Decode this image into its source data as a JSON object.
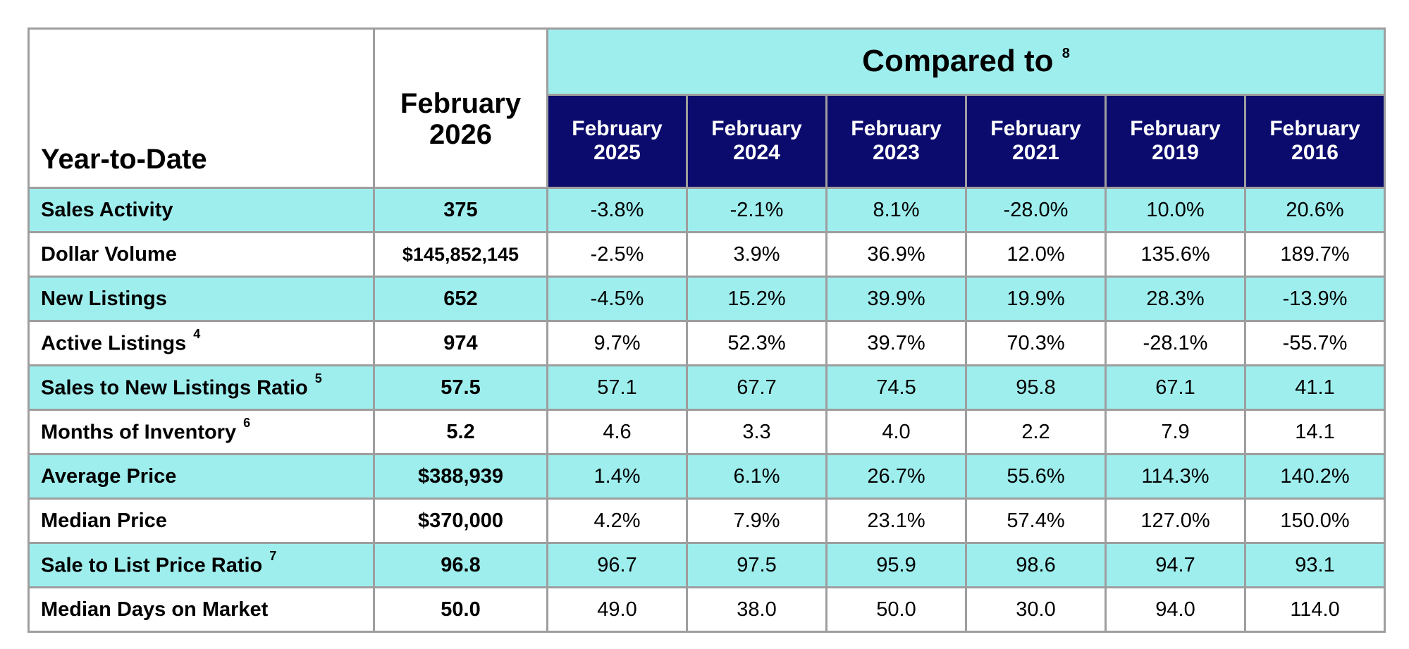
{
  "table": {
    "row_header": "Year-to-Date",
    "current_period": {
      "line1": "February",
      "line2": "2026"
    },
    "compared_to": {
      "label": "Compared to",
      "note": "8"
    },
    "compare_columns": [
      {
        "line1": "February",
        "line2": "2025"
      },
      {
        "line1": "February",
        "line2": "2024"
      },
      {
        "line1": "February",
        "line2": "2023"
      },
      {
        "line1": "February",
        "line2": "2021"
      },
      {
        "line1": "February",
        "line2": "2019"
      },
      {
        "line1": "February",
        "line2": "2016"
      }
    ],
    "rows": [
      {
        "label": "Sales Activity",
        "note": "",
        "current": "375",
        "values": [
          "-3.8%",
          "-2.1%",
          "8.1%",
          "-28.0%",
          "10.0%",
          "20.6%"
        ]
      },
      {
        "label": "Dollar Volume",
        "note": "",
        "current": "$145,852,145",
        "values": [
          "-2.5%",
          "3.9%",
          "36.9%",
          "12.0%",
          "135.6%",
          "189.7%"
        ]
      },
      {
        "label": "New Listings",
        "note": "",
        "current": "652",
        "values": [
          "-4.5%",
          "15.2%",
          "39.9%",
          "19.9%",
          "28.3%",
          "-13.9%"
        ]
      },
      {
        "label": "Active Listings",
        "note": "4",
        "current": "974",
        "values": [
          "9.7%",
          "52.3%",
          "39.7%",
          "70.3%",
          "-28.1%",
          "-55.7%"
        ]
      },
      {
        "label": "Sales to New Listings Ratio",
        "note": "5",
        "current": "57.5",
        "values": [
          "57.1",
          "67.7",
          "74.5",
          "95.8",
          "67.1",
          "41.1"
        ]
      },
      {
        "label": "Months of Inventory",
        "note": "6",
        "current": "5.2",
        "values": [
          "4.6",
          "3.3",
          "4.0",
          "2.2",
          "7.9",
          "14.1"
        ]
      },
      {
        "label": "Average Price",
        "note": "",
        "current": "$388,939",
        "values": [
          "1.4%",
          "6.1%",
          "26.7%",
          "55.6%",
          "114.3%",
          "140.2%"
        ]
      },
      {
        "label": "Median Price",
        "note": "",
        "current": "$370,000",
        "values": [
          "4.2%",
          "7.9%",
          "23.1%",
          "57.4%",
          "127.0%",
          "150.0%"
        ]
      },
      {
        "label": "Sale to List Price Ratio",
        "note": "7",
        "current": "96.8",
        "values": [
          "96.7",
          "97.5",
          "95.9",
          "98.6",
          "94.7",
          "93.1"
        ]
      },
      {
        "label": "Median Days on Market",
        "note": "",
        "current": "50.0",
        "values": [
          "49.0",
          "38.0",
          "50.0",
          "30.0",
          "94.0",
          "114.0"
        ]
      }
    ]
  },
  "colors": {
    "highlight": "#9feeee",
    "header_dark": "#0b0b6e",
    "border": "#9e9e9e"
  }
}
